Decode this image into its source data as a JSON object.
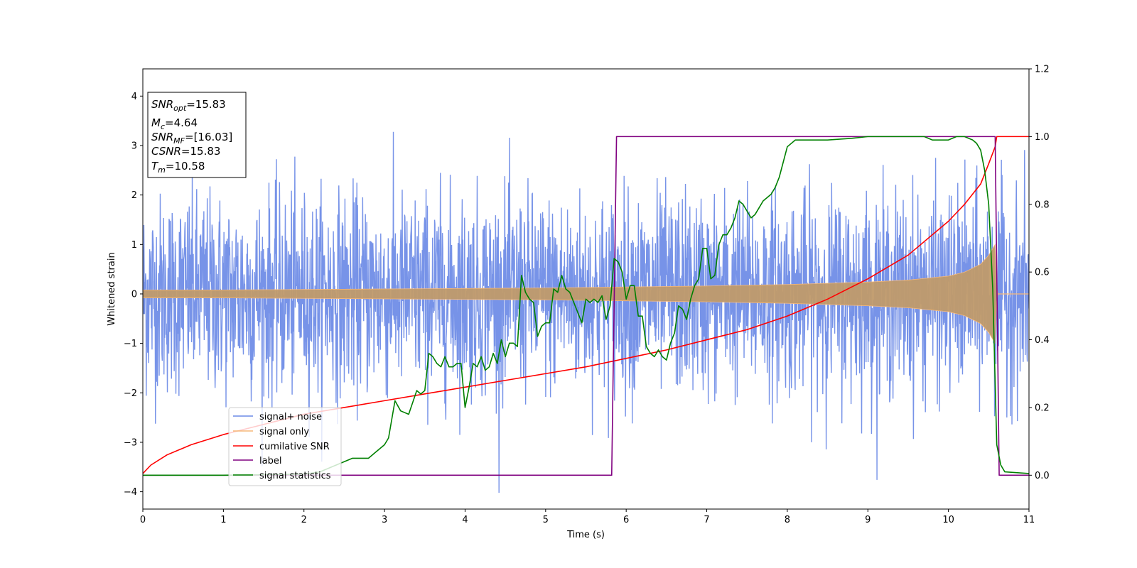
{
  "chart_data": {
    "type": "line",
    "title": "",
    "xlabel": "Time (s)",
    "ylabel": "Whitened strain",
    "xlim": [
      0,
      11
    ],
    "ylim_left": [
      -4.35,
      4.55
    ],
    "ylim_right": [
      -0.1,
      1.2
    ],
    "xticks": [
      0,
      1,
      2,
      3,
      4,
      5,
      6,
      7,
      8,
      9,
      10,
      11
    ],
    "yticks_left": [
      -4,
      -3,
      -2,
      -1,
      0,
      1,
      2,
      3,
      4
    ],
    "yticks_right": [
      0.0,
      0.2,
      0.4,
      0.6,
      0.8,
      1.0,
      1.2
    ],
    "grid": false,
    "legend_position": "lower-left",
    "info_box": {
      "snr_opt": {
        "symbol": "SNR",
        "sub": "opt",
        "value": "=15.83"
      },
      "mc": {
        "symbol": "M",
        "sub": "c",
        "value": "=4.64"
      },
      "snr_mf": {
        "symbol": "SNR",
        "sub": "MF",
        "value": "=[16.03]"
      },
      "csnr": {
        "symbol": "CSNR",
        "sub": "",
        "value": "=15.83"
      },
      "tm": {
        "symbol": "T",
        "sub": "m",
        "value": "=10.58"
      }
    },
    "series": [
      {
        "name": "signal+ noise",
        "axis": "left",
        "color": "#6b8ae6",
        "style": "noise",
        "x_range": [
          0,
          11
        ],
        "std": 1.0,
        "max_abs": 4.2
      },
      {
        "name": "signal only",
        "axis": "left",
        "color": "#f5b87a",
        "style": "envelope",
        "x": [
          0,
          1,
          2,
          3,
          4,
          5,
          6,
          7,
          8,
          9,
          9.5,
          10,
          10.2,
          10.4,
          10.5,
          10.58,
          10.6,
          11
        ],
        "amplitude": [
          0.08,
          0.08,
          0.09,
          0.1,
          0.11,
          0.12,
          0.14,
          0.16,
          0.19,
          0.24,
          0.28,
          0.36,
          0.44,
          0.6,
          0.78,
          1.0,
          0.0,
          0.0
        ]
      },
      {
        "name": "cumilative SNR",
        "axis": "right",
        "color": "#ff0000",
        "style": "line",
        "x": [
          0,
          0.1,
          0.3,
          0.6,
          1,
          1.5,
          2,
          2.5,
          3,
          3.5,
          4,
          4.5,
          5,
          5.5,
          6,
          6.5,
          7,
          7.5,
          8,
          8.5,
          9,
          9.5,
          10,
          10.2,
          10.4,
          10.5,
          10.58,
          10.6,
          11
        ],
        "y": [
          0.005,
          0.03,
          0.06,
          0.09,
          0.12,
          0.15,
          0.18,
          0.2,
          0.22,
          0.24,
          0.26,
          0.28,
          0.3,
          0.32,
          0.345,
          0.37,
          0.4,
          0.43,
          0.47,
          0.52,
          0.58,
          0.65,
          0.75,
          0.8,
          0.86,
          0.92,
          0.97,
          1.0,
          1.0
        ]
      },
      {
        "name": "label",
        "axis": "right",
        "color": "#800080",
        "style": "line",
        "x": [
          0,
          5.82,
          5.88,
          10.58,
          10.63,
          11
        ],
        "y": [
          0,
          0,
          1,
          1,
          0,
          0
        ]
      },
      {
        "name": "signal statistics",
        "axis": "right",
        "color": "#008000",
        "style": "line",
        "x": [
          0,
          1,
          2,
          2.2,
          2.4,
          2.6,
          2.8,
          2.9,
          3.0,
          3.05,
          3.13,
          3.2,
          3.3,
          3.4,
          3.45,
          3.5,
          3.55,
          3.6,
          3.65,
          3.7,
          3.75,
          3.8,
          3.85,
          3.9,
          3.95,
          4.0,
          4.05,
          4.1,
          4.15,
          4.2,
          4.25,
          4.3,
          4.35,
          4.4,
          4.45,
          4.5,
          4.55,
          4.6,
          4.65,
          4.7,
          4.75,
          4.8,
          4.85,
          4.9,
          4.95,
          5.0,
          5.05,
          5.1,
          5.15,
          5.2,
          5.25,
          5.3,
          5.35,
          5.4,
          5.45,
          5.5,
          5.55,
          5.6,
          5.65,
          5.7,
          5.75,
          5.8,
          5.85,
          5.9,
          5.95,
          6.0,
          6.05,
          6.1,
          6.15,
          6.2,
          6.25,
          6.3,
          6.35,
          6.4,
          6.45,
          6.5,
          6.55,
          6.6,
          6.65,
          6.7,
          6.75,
          6.8,
          6.85,
          6.9,
          6.95,
          7.0,
          7.05,
          7.1,
          7.15,
          7.2,
          7.25,
          7.3,
          7.35,
          7.4,
          7.45,
          7.5,
          7.55,
          7.6,
          7.65,
          7.7,
          7.75,
          7.8,
          7.85,
          7.9,
          8.0,
          8.1,
          8.2,
          8.5,
          8.8,
          9.0,
          9.3,
          9.5,
          9.7,
          9.8,
          9.9,
          10.0,
          10.1,
          10.2,
          10.3,
          10.35,
          10.4,
          10.45,
          10.5,
          10.55,
          10.6,
          10.65,
          10.7,
          11
        ],
        "y": [
          0,
          0,
          0.003,
          0.01,
          0.03,
          0.05,
          0.05,
          0.07,
          0.09,
          0.11,
          0.22,
          0.19,
          0.18,
          0.25,
          0.24,
          0.25,
          0.36,
          0.35,
          0.33,
          0.32,
          0.35,
          0.32,
          0.32,
          0.33,
          0.33,
          0.2,
          0.26,
          0.33,
          0.32,
          0.35,
          0.31,
          0.32,
          0.36,
          0.33,
          0.4,
          0.35,
          0.39,
          0.39,
          0.38,
          0.59,
          0.54,
          0.52,
          0.51,
          0.41,
          0.44,
          0.45,
          0.45,
          0.55,
          0.54,
          0.59,
          0.55,
          0.54,
          0.51,
          0.48,
          0.45,
          0.52,
          0.51,
          0.52,
          0.51,
          0.53,
          0.46,
          0.5,
          0.64,
          0.63,
          0.6,
          0.52,
          0.56,
          0.56,
          0.47,
          0.47,
          0.38,
          0.36,
          0.35,
          0.37,
          0.35,
          0.34,
          0.39,
          0.42,
          0.5,
          0.49,
          0.46,
          0.52,
          0.56,
          0.58,
          0.67,
          0.67,
          0.58,
          0.59,
          0.68,
          0.71,
          0.71,
          0.73,
          0.76,
          0.81,
          0.8,
          0.78,
          0.76,
          0.77,
          0.79,
          0.81,
          0.82,
          0.83,
          0.85,
          0.88,
          0.97,
          0.99,
          0.99,
          0.99,
          0.995,
          1.0,
          1.0,
          1.0,
          1.0,
          0.99,
          0.99,
          0.99,
          1.0,
          1.0,
          0.99,
          0.98,
          0.96,
          0.9,
          0.8,
          0.55,
          0.09,
          0.03,
          0.01,
          0.005
        ]
      }
    ]
  }
}
